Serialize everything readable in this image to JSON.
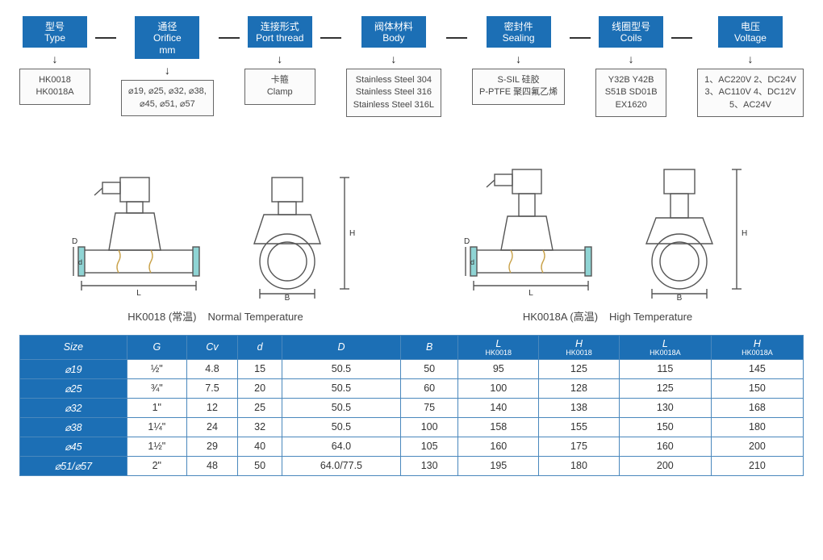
{
  "colors": {
    "primary": "#1c6fb5",
    "line": "#333333",
    "border": "#4a88bd",
    "text": "#333333",
    "value_box_bg": "#fbfbfb",
    "value_box_border": "#666666",
    "drawing_stroke": "#555555",
    "drawing_cut_fill": "#8fd4d4"
  },
  "properties": [
    {
      "cn": "型号",
      "en": "Type",
      "values": [
        "HK0018",
        "HK0018A"
      ]
    },
    {
      "cn": "通径",
      "en": "Orifice",
      "sub": "mm",
      "values": [
        "⌀19, ⌀25, ⌀32, ⌀38,",
        "⌀45, ⌀51, ⌀57"
      ]
    },
    {
      "cn": "连接形式",
      "en": "Port thread",
      "values": [
        "卡箍",
        "Clamp"
      ]
    },
    {
      "cn": "阀体材料",
      "en": "Body",
      "values": [
        "Stainless Steel  304",
        "Stainless Steel  316",
        "Stainless Steel  316L"
      ]
    },
    {
      "cn": "密封件",
      "en": "Sealing",
      "values": [
        "S-SIL 硅胶",
        "P-PTFE 聚四氟乙烯"
      ]
    },
    {
      "cn": "线圈型号",
      "en": "Coils",
      "values": [
        "Y32B   Y42B",
        "S51B   SD01B",
        "EX1620"
      ]
    },
    {
      "cn": "电压",
      "en": "Voltage",
      "values": [
        "1、AC220V   2、DC24V",
        "3、AC110V   4、DC12V",
        "5、AC24V"
      ]
    }
  ],
  "drawings": [
    {
      "caption_cn": "HK0018 (常温)",
      "caption_en": "Normal Temperature",
      "dims": {
        "L": "L",
        "B": "B",
        "H": "H",
        "D": "D",
        "d": "d"
      }
    },
    {
      "caption_cn": "HK0018A (高温)",
      "caption_en": "High Temperature",
      "dims": {
        "L": "L",
        "B": "B",
        "H": "H",
        "D": "D",
        "d": "d"
      }
    }
  ],
  "table": {
    "columns": [
      {
        "label": "Size"
      },
      {
        "label": "G"
      },
      {
        "label": "Cv"
      },
      {
        "label": "d"
      },
      {
        "label": "D"
      },
      {
        "label": "B"
      },
      {
        "label": "L",
        "sub": "HK0018"
      },
      {
        "label": "H",
        "sub": "HK0018"
      },
      {
        "label": "L",
        "sub": "HK0018A"
      },
      {
        "label": "H",
        "sub": "HK0018A"
      }
    ],
    "rows": [
      [
        "⌀19",
        "½\"",
        "4.8",
        "15",
        "50.5",
        "50",
        "95",
        "125",
        "115",
        "145"
      ],
      [
        "⌀25",
        "¾\"",
        "7.5",
        "20",
        "50.5",
        "60",
        "100",
        "128",
        "125",
        "150"
      ],
      [
        "⌀32",
        "1\"",
        "12",
        "25",
        "50.5",
        "75",
        "140",
        "138",
        "130",
        "168"
      ],
      [
        "⌀38",
        "1¼\"",
        "24",
        "32",
        "50.5",
        "100",
        "158",
        "155",
        "150",
        "180"
      ],
      [
        "⌀45",
        "1½\"",
        "29",
        "40",
        "64.0",
        "105",
        "160",
        "175",
        "160",
        "200"
      ],
      [
        "⌀51/⌀57",
        "2\"",
        "48",
        "50",
        "64.0/77.5",
        "130",
        "195",
        "180",
        "200",
        "210"
      ]
    ]
  }
}
